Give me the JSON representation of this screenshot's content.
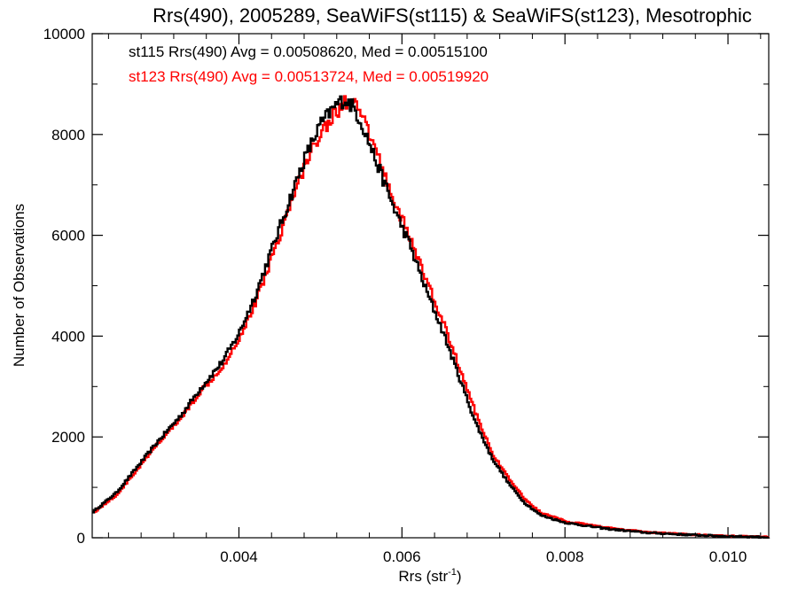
{
  "chart_data": {
    "type": "line",
    "title": "Rrs(490), 2005289, SeaWiFS(st115) & SeaWiFS(st123), Mesotrophic",
    "xlabel": "Rrs (str",
    "xlabel_sup": "-1",
    "xlabel_close": ")",
    "ylabel": "Number of Observations",
    "xlim": [
      0.0022,
      0.0105
    ],
    "ylim": [
      0,
      10000
    ],
    "x_ticks": [
      0.004,
      0.006,
      0.008,
      0.01
    ],
    "x_tick_labels": [
      "0.004",
      "0.006",
      "0.008",
      "0.010"
    ],
    "y_ticks": [
      0,
      2000,
      4000,
      6000,
      8000,
      10000
    ],
    "y_tick_labels": [
      "0",
      "2000",
      "4000",
      "6000",
      "8000",
      "10000"
    ],
    "grid": false,
    "legend_position": "top-left",
    "x": [
      0.0022,
      0.0025,
      0.0028,
      0.003,
      0.0033,
      0.0035,
      0.0038,
      0.004,
      0.0042,
      0.0044,
      0.0046,
      0.0048,
      0.005,
      0.0052,
      0.0053,
      0.0054,
      0.0055,
      0.0057,
      0.0059,
      0.0061,
      0.0063,
      0.0065,
      0.0067,
      0.0069,
      0.0071,
      0.0073,
      0.0075,
      0.0077,
      0.008,
      0.0085,
      0.009,
      0.0095,
      0.01,
      0.0105
    ],
    "series": [
      {
        "name": "st115",
        "color": "#000000",
        "legend": "st115 Rrs(490) Avg = 0.00508620, Med = 0.00515100",
        "values": [
          500,
          900,
          1500,
          1900,
          2450,
          2900,
          3500,
          4050,
          4800,
          5700,
          6600,
          7500,
          8200,
          8600,
          8700,
          8550,
          8250,
          7400,
          6550,
          5800,
          4900,
          4100,
          3200,
          2300,
          1600,
          1100,
          700,
          450,
          300,
          180,
          100,
          60,
          30,
          10
        ]
      },
      {
        "name": "st123",
        "color": "#ff0000",
        "legend": "st123 Rrs(490) Avg = 0.00513724, Med = 0.00519920",
        "values": [
          480,
          850,
          1450,
          1850,
          2400,
          2850,
          3400,
          3950,
          4650,
          5550,
          6450,
          7350,
          8050,
          8450,
          8650,
          8600,
          8400,
          7600,
          6700,
          5950,
          5100,
          4300,
          3400,
          2500,
          1700,
          1200,
          780,
          500,
          330,
          200,
          110,
          65,
          35,
          12
        ]
      }
    ]
  }
}
